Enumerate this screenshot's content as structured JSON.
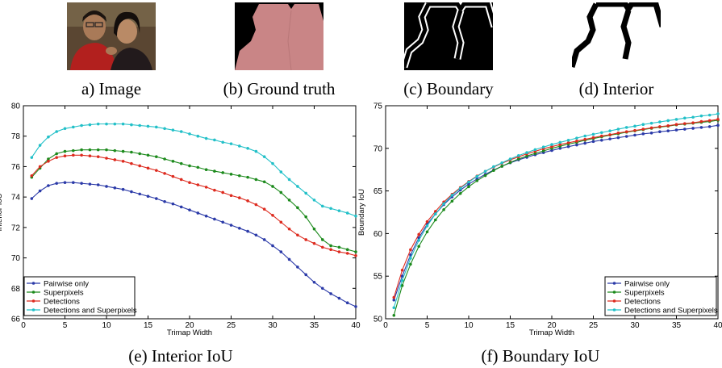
{
  "figure": {
    "captions": {
      "image": "a) Image",
      "ground_truth": "(b) Ground truth",
      "boundary": "(c) Boundary",
      "interior": "(d) Interior",
      "interior_iou": "(e) Interior IoU",
      "boundary_iou": "(f) Boundary IoU"
    },
    "colors": {
      "ground_truth_mask": "#c98586",
      "photo_background": "#5a4632"
    }
  },
  "chart_data": [
    {
      "type": "line",
      "xlabel": "Trimap Width",
      "ylabel": "Interior IoU",
      "xlim": [
        0,
        40
      ],
      "ylim": [
        66,
        80
      ],
      "xticks": [
        "0",
        "5",
        "10",
        "15",
        "20",
        "25",
        "30",
        "35",
        "40"
      ],
      "yticks": [
        "66",
        "68",
        "70",
        "72",
        "74",
        "76",
        "78",
        "80"
      ],
      "grid": false,
      "legend_position": "bottom-left",
      "x": [
        1,
        2,
        3,
        4,
        5,
        6,
        7,
        8,
        9,
        10,
        11,
        12,
        13,
        14,
        15,
        16,
        17,
        18,
        19,
        20,
        21,
        22,
        23,
        24,
        25,
        26,
        27,
        28,
        29,
        30,
        31,
        32,
        33,
        34,
        35,
        36,
        37,
        38,
        39,
        40
      ],
      "series": [
        {
          "name": "Pairwise only",
          "color": "#2b3aa8",
          "values": [
            73.9,
            74.4,
            74.75,
            74.9,
            74.95,
            74.95,
            74.9,
            74.85,
            74.8,
            74.7,
            74.6,
            74.5,
            74.35,
            74.2,
            74.05,
            73.9,
            73.7,
            73.55,
            73.35,
            73.15,
            72.95,
            72.75,
            72.55,
            72.35,
            72.15,
            71.95,
            71.75,
            71.5,
            71.2,
            70.8,
            70.4,
            69.9,
            69.4,
            68.9,
            68.4,
            68.0,
            67.65,
            67.35,
            67.05,
            66.8
          ]
        },
        {
          "name": "Superpixels",
          "color": "#1c8a1c",
          "values": [
            75.3,
            75.9,
            76.5,
            76.85,
            77.0,
            77.05,
            77.1,
            77.1,
            77.1,
            77.1,
            77.05,
            77.0,
            76.95,
            76.85,
            76.75,
            76.65,
            76.5,
            76.35,
            76.2,
            76.05,
            75.95,
            75.8,
            75.7,
            75.6,
            75.5,
            75.4,
            75.3,
            75.15,
            75.0,
            74.7,
            74.3,
            73.8,
            73.3,
            72.7,
            71.9,
            71.2,
            70.8,
            70.7,
            70.55,
            70.4
          ]
        },
        {
          "name": "Detections",
          "color": "#dd2a1e",
          "values": [
            75.4,
            76.0,
            76.35,
            76.6,
            76.7,
            76.75,
            76.75,
            76.7,
            76.65,
            76.55,
            76.45,
            76.35,
            76.2,
            76.05,
            75.9,
            75.75,
            75.55,
            75.35,
            75.15,
            74.95,
            74.8,
            74.65,
            74.45,
            74.3,
            74.1,
            73.95,
            73.75,
            73.5,
            73.2,
            72.8,
            72.35,
            71.9,
            71.5,
            71.2,
            70.95,
            70.7,
            70.55,
            70.4,
            70.3,
            70.15
          ]
        },
        {
          "name": "Detections and Superpixels",
          "color": "#22c0c8",
          "values": [
            76.6,
            77.4,
            77.95,
            78.3,
            78.5,
            78.6,
            78.7,
            78.75,
            78.8,
            78.8,
            78.8,
            78.8,
            78.75,
            78.7,
            78.65,
            78.6,
            78.5,
            78.4,
            78.3,
            78.15,
            78.0,
            77.85,
            77.75,
            77.6,
            77.5,
            77.35,
            77.2,
            77.0,
            76.65,
            76.2,
            75.65,
            75.15,
            74.7,
            74.25,
            73.8,
            73.4,
            73.25,
            73.1,
            72.95,
            72.75
          ]
        }
      ]
    },
    {
      "type": "line",
      "xlabel": "Trimap Width",
      "ylabel": "Boundary IoU",
      "xlim": [
        0,
        40
      ],
      "ylim": [
        50,
        75
      ],
      "xticks": [
        "0",
        "5",
        "10",
        "15",
        "20",
        "25",
        "30",
        "35",
        "40"
      ],
      "yticks": [
        "50",
        "55",
        "60",
        "65",
        "70",
        "75"
      ],
      "grid": false,
      "legend_position": "bottom-right",
      "x": [
        1,
        2,
        3,
        4,
        5,
        6,
        7,
        8,
        9,
        10,
        11,
        12,
        13,
        14,
        15,
        16,
        17,
        18,
        19,
        20,
        21,
        22,
        23,
        24,
        25,
        26,
        27,
        28,
        29,
        30,
        31,
        32,
        33,
        34,
        35,
        36,
        37,
        38,
        39,
        40
      ],
      "series": [
        {
          "name": "Pairwise only",
          "color": "#2b3aa8",
          "values": [
            52.2,
            55.0,
            57.5,
            59.5,
            61.1,
            62.3,
            63.4,
            64.3,
            65.1,
            65.8,
            66.4,
            66.95,
            67.45,
            67.9,
            68.3,
            68.65,
            68.95,
            69.25,
            69.5,
            69.75,
            70.0,
            70.2,
            70.4,
            70.6,
            70.8,
            70.95,
            71.1,
            71.25,
            71.4,
            71.55,
            71.7,
            71.8,
            71.95,
            72.05,
            72.15,
            72.25,
            72.35,
            72.45,
            72.55,
            72.7
          ]
        },
        {
          "name": "Superpixels",
          "color": "#1c8a1c",
          "values": [
            50.4,
            53.9,
            56.4,
            58.5,
            60.2,
            61.6,
            62.8,
            63.8,
            64.7,
            65.5,
            66.2,
            66.8,
            67.4,
            67.9,
            68.35,
            68.75,
            69.1,
            69.4,
            69.7,
            70.0,
            70.25,
            70.5,
            70.7,
            70.95,
            71.15,
            71.35,
            71.55,
            71.7,
            71.9,
            72.05,
            72.2,
            72.35,
            72.5,
            72.6,
            72.75,
            72.85,
            72.95,
            73.05,
            73.15,
            73.3
          ]
        },
        {
          "name": "Detections",
          "color": "#dd2a1e",
          "values": [
            52.5,
            55.7,
            58.1,
            59.9,
            61.4,
            62.6,
            63.7,
            64.6,
            65.4,
            66.1,
            66.75,
            67.3,
            67.8,
            68.25,
            68.65,
            69.0,
            69.35,
            69.65,
            69.95,
            70.2,
            70.45,
            70.65,
            70.85,
            71.05,
            71.25,
            71.45,
            71.6,
            71.8,
            71.95,
            72.1,
            72.25,
            72.4,
            72.55,
            72.65,
            72.8,
            72.9,
            73.0,
            73.15,
            73.25,
            73.4
          ]
        },
        {
          "name": "Detections and Superpixels",
          "color": "#22c0c8",
          "values": [
            51.3,
            54.5,
            57.1,
            59.2,
            60.9,
            62.3,
            63.5,
            64.5,
            65.3,
            66.05,
            66.7,
            67.3,
            67.85,
            68.3,
            68.75,
            69.15,
            69.5,
            69.85,
            70.15,
            70.45,
            70.7,
            70.95,
            71.2,
            71.45,
            71.65,
            71.85,
            72.05,
            72.25,
            72.45,
            72.6,
            72.8,
            72.95,
            73.1,
            73.25,
            73.4,
            73.55,
            73.65,
            73.8,
            73.9,
            74.05
          ]
        }
      ]
    }
  ]
}
